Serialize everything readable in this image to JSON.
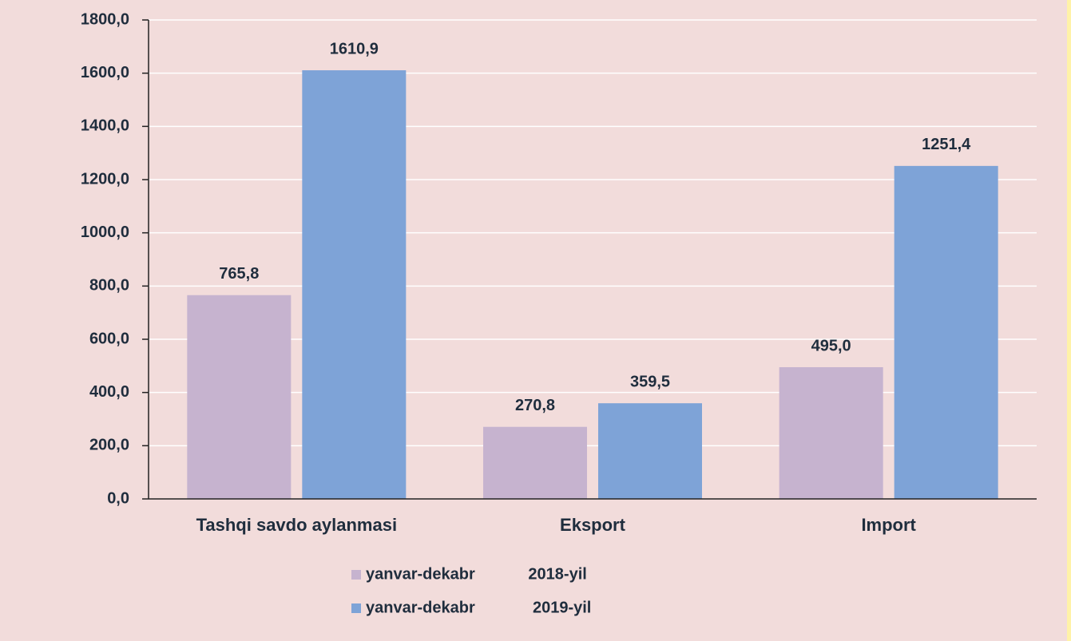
{
  "chart_data": {
    "type": "bar",
    "categories": [
      "Tashqi savdo aylanmasi",
      "Eksport",
      "Import"
    ],
    "series": [
      {
        "name": "yanvar-dekabr            2018-yil",
        "color": "#c6b3cf",
        "values": [
          765.8,
          270.8,
          495.0
        ],
        "value_labels": [
          "765,8",
          "270,8",
          "495,0"
        ]
      },
      {
        "name": "yanvar-dekabr             2019-yil",
        "color": "#7ea3d7",
        "values": [
          1610.9,
          359.5,
          1251.4
        ],
        "value_labels": [
          "1610,9",
          "359,5",
          "1251,4"
        ]
      }
    ],
    "ylim": [
      0,
      1800
    ],
    "yticks": [
      {
        "value": 0,
        "label": "0,0"
      },
      {
        "value": 200,
        "label": "200,0"
      },
      {
        "value": 400,
        "label": "400,0"
      },
      {
        "value": 600,
        "label": "600,0"
      },
      {
        "value": 800,
        "label": "800,0"
      },
      {
        "value": 1000,
        "label": "1000,0"
      },
      {
        "value": 1200,
        "label": "1200,0"
      },
      {
        "value": 1400,
        "label": "1400,0"
      },
      {
        "value": 1600,
        "label": "1600,0"
      },
      {
        "value": 1800,
        "label": "1800,0"
      }
    ],
    "grid": true
  }
}
